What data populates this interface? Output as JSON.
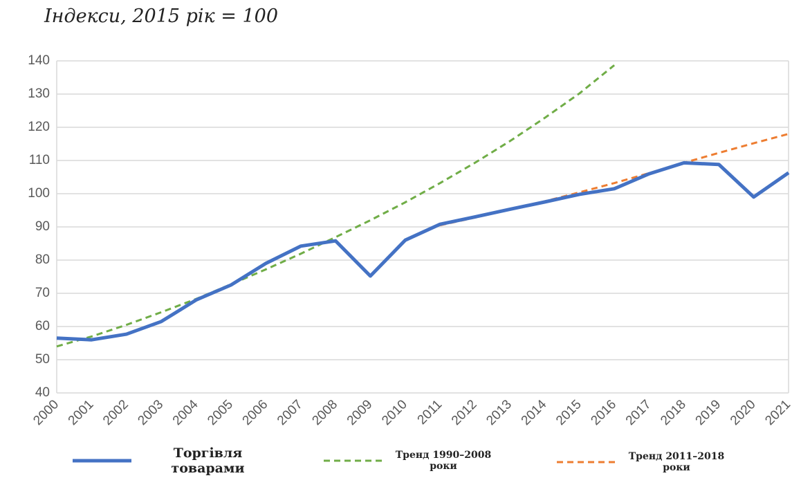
{
  "chart_data": {
    "type": "line",
    "title": "Індекси, 2015 рік = 100",
    "categories": [
      "2000",
      "2001",
      "2002",
      "2003",
      "2004",
      "2005",
      "2006",
      "2007",
      "2008",
      "2009",
      "2010",
      "2011",
      "2012",
      "2013",
      "2014",
      "2015",
      "2016",
      "2017",
      "2018",
      "2019",
      "2020",
      "2021"
    ],
    "series": [
      {
        "name": "Торгівля товарами",
        "color": "#4472c4",
        "dash": false,
        "values": [
          56.5,
          56,
          57.7,
          61.5,
          68,
          72.5,
          79,
          84.2,
          85.8,
          75.2,
          86,
          90.8,
          93,
          95.3,
          97.5,
          99.8,
          101.5,
          106,
          109.3,
          108.8,
          99,
          106.3
        ]
      },
      {
        "name": "Тренд 1990–2008 роки",
        "color": "#70ad47",
        "dash": true,
        "values": [
          54,
          57,
          60.5,
          64.3,
          68.3,
          72.7,
          77.2,
          81.9,
          86.9,
          92,
          97.4,
          103.2,
          109.3,
          115.8,
          122.8,
          130.2,
          138.7,
          null,
          null,
          null,
          null,
          null
        ]
      },
      {
        "name": "Тренд 2011–2018 роки",
        "color": "#ed7d31",
        "dash": true,
        "values": [
          null,
          null,
          null,
          null,
          null,
          null,
          null,
          null,
          null,
          null,
          null,
          90.5,
          92.8,
          95.2,
          97.7,
          100.4,
          103.2,
          106.2,
          109.3,
          112.3,
          115.2,
          118
        ]
      }
    ],
    "ylim": [
      40,
      140
    ],
    "yticks": [
      40,
      50,
      60,
      70,
      80,
      90,
      100,
      110,
      120,
      130,
      140
    ],
    "grid": true
  }
}
